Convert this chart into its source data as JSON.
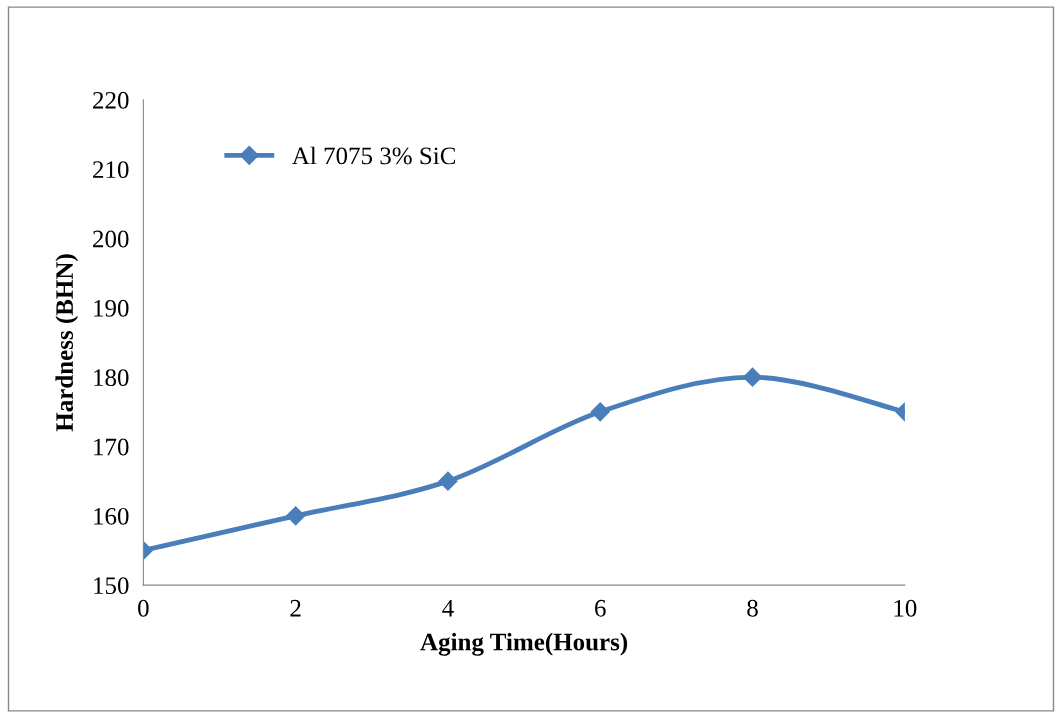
{
  "chart_data": {
    "type": "line",
    "xlabel": "Aging Time(Hours)",
    "ylabel": "Hardness (BHN)",
    "x": [
      0,
      2,
      4,
      6,
      8,
      10
    ],
    "series": [
      {
        "name": "Al 7075 3% SiC",
        "color": "#4a7ebb",
        "values": [
          155,
          160,
          165,
          175,
          180,
          175
        ]
      }
    ],
    "xlim": [
      0,
      10
    ],
    "xticks": [
      0,
      2,
      4,
      6,
      8,
      10
    ],
    "ylim": [
      150,
      220
    ],
    "yticks": [
      150,
      160,
      170,
      180,
      190,
      200,
      210,
      220
    ],
    "marker": "diamond",
    "line_style": "solid",
    "legend": "top left",
    "grid": false
  }
}
